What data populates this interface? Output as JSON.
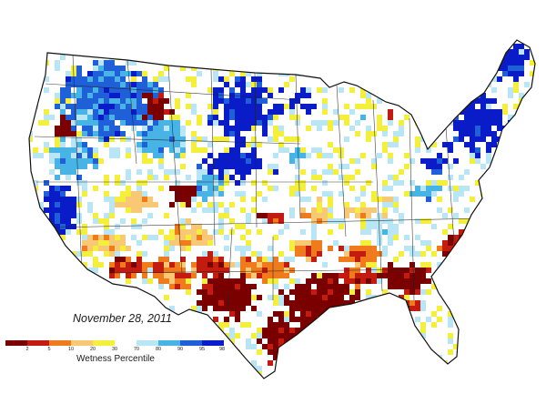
{
  "date_label": "November 28, 2011",
  "legend": {
    "title": "Wetness Percentile",
    "classes": [
      {
        "label": "2",
        "color": "#7a0000"
      },
      {
        "label": "5",
        "color": "#c41b10"
      },
      {
        "label": "10",
        "color": "#f07b1d"
      },
      {
        "label": "20",
        "color": "#f9c875"
      },
      {
        "label": "30",
        "color": "#f4ef3c"
      },
      {
        "label": "70",
        "color": "#ffffff"
      },
      {
        "label": "80",
        "color": "#b9e6f5"
      },
      {
        "label": "90",
        "color": "#48b4e6"
      },
      {
        "label": "95",
        "color": "#1f5fd8"
      },
      {
        "label": "98",
        "color": "#0a1cc8"
      }
    ]
  }
}
